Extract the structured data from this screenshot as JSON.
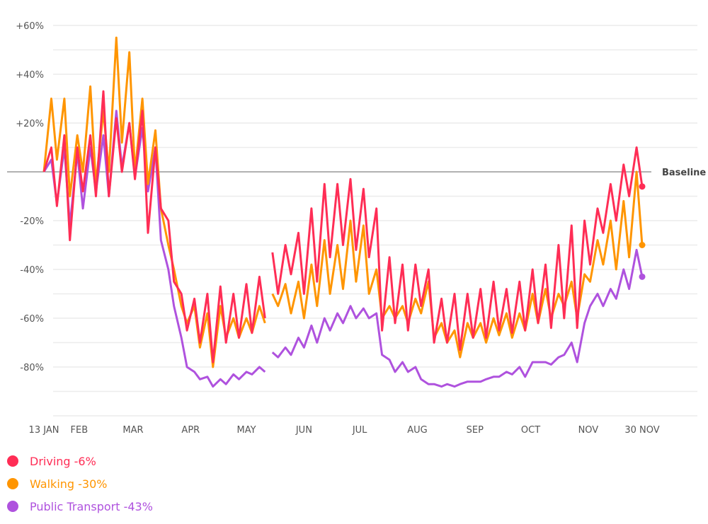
{
  "chart_data": {
    "type": "line",
    "title": "",
    "xlabel": "",
    "ylabel": "",
    "ylim": [
      -100,
      60
    ],
    "grid": true,
    "baseline": {
      "value": 0,
      "label": "Baseline"
    },
    "y_ticks": [
      {
        "value": 60,
        "label": "+60%"
      },
      {
        "value": 40,
        "label": "+40%"
      },
      {
        "value": 20,
        "label": "+20%"
      },
      {
        "value": -20,
        "label": "-20%"
      },
      {
        "value": -40,
        "label": "-40%"
      },
      {
        "value": -60,
        "label": "-60%"
      },
      {
        "value": -80,
        "label": "-80%"
      }
    ],
    "x_range": [
      "2020-01-13",
      "2020-11-30"
    ],
    "x_ticks": [
      {
        "date": "2020-01-13",
        "label": "13 JAN"
      },
      {
        "date": "2020-02-01",
        "label": "FEB"
      },
      {
        "date": "2020-03-01",
        "label": "MAR"
      },
      {
        "date": "2020-04-01",
        "label": "APR"
      },
      {
        "date": "2020-05-01",
        "label": "MAY"
      },
      {
        "date": "2020-06-01",
        "label": "JUN"
      },
      {
        "date": "2020-07-01",
        "label": "JUL"
      },
      {
        "date": "2020-08-01",
        "label": "AUG"
      },
      {
        "date": "2020-09-01",
        "label": "SEP"
      },
      {
        "date": "2020-10-01",
        "label": "OCT"
      },
      {
        "date": "2020-11-01",
        "label": "NOV"
      },
      {
        "date": "2020-11-30",
        "label": "30 NOV"
      }
    ],
    "x": [
      "2020-01-13",
      "2020-01-17",
      "2020-01-20",
      "2020-01-24",
      "2020-01-27",
      "2020-01-31",
      "2020-02-03",
      "2020-02-07",
      "2020-02-10",
      "2020-02-14",
      "2020-02-17",
      "2020-02-21",
      "2020-02-24",
      "2020-02-28",
      "2020-03-02",
      "2020-03-06",
      "2020-03-09",
      "2020-03-13",
      "2020-03-16",
      "2020-03-20",
      "2020-03-23",
      "2020-03-27",
      "2020-03-30",
      "2020-04-03",
      "2020-04-06",
      "2020-04-10",
      "2020-04-13",
      "2020-04-17",
      "2020-04-20",
      "2020-04-24",
      "2020-04-27",
      "2020-05-01",
      "2020-05-04",
      "2020-05-08",
      "2020-05-11",
      "2020-05-13",
      "2020-05-15",
      "2020-05-18",
      "2020-05-22",
      "2020-05-25",
      "2020-05-29",
      "2020-06-01",
      "2020-06-05",
      "2020-06-08",
      "2020-06-12",
      "2020-06-15",
      "2020-06-19",
      "2020-06-22",
      "2020-06-26",
      "2020-06-29",
      "2020-07-03",
      "2020-07-06",
      "2020-07-10",
      "2020-07-13",
      "2020-07-17",
      "2020-07-20",
      "2020-07-24",
      "2020-07-27",
      "2020-07-31",
      "2020-08-03",
      "2020-08-07",
      "2020-08-10",
      "2020-08-14",
      "2020-08-17",
      "2020-08-21",
      "2020-08-24",
      "2020-08-28",
      "2020-08-31",
      "2020-09-04",
      "2020-09-07",
      "2020-09-11",
      "2020-09-14",
      "2020-09-18",
      "2020-09-21",
      "2020-09-25",
      "2020-09-28",
      "2020-10-02",
      "2020-10-05",
      "2020-10-09",
      "2020-10-12",
      "2020-10-16",
      "2020-10-19",
      "2020-10-23",
      "2020-10-26",
      "2020-10-30",
      "2020-11-02",
      "2020-11-06",
      "2020-11-09",
      "2020-11-13",
      "2020-11-16",
      "2020-11-20",
      "2020-11-23",
      "2020-11-27",
      "2020-11-30"
    ],
    "series": [
      {
        "name": "Driving",
        "label": "Driving -6%",
        "color": "#ff2d55",
        "last": -6,
        "values": [
          0,
          10,
          -14,
          15,
          -28,
          10,
          -8,
          15,
          -10,
          33,
          -10,
          22,
          0,
          20,
          -3,
          25,
          -25,
          10,
          -15,
          -20,
          -45,
          -50,
          -65,
          -52,
          -70,
          -50,
          -78,
          -47,
          -70,
          -50,
          -68,
          -46,
          -66,
          -43,
          -60,
          null,
          -33,
          -50,
          -30,
          -42,
          -25,
          -50,
          -15,
          -45,
          -5,
          -35,
          -5,
          -30,
          -3,
          -32,
          -7,
          -35,
          -15,
          -65,
          -35,
          -62,
          -38,
          -65,
          -38,
          -55,
          -40,
          -70,
          -52,
          -70,
          -50,
          -73,
          -50,
          -68,
          -48,
          -68,
          -45,
          -65,
          -48,
          -66,
          -45,
          -65,
          -40,
          -62,
          -38,
          -64,
          -30,
          -60,
          -22,
          -64,
          -20,
          -38,
          -15,
          -25,
          -5,
          -20,
          3,
          -10,
          10,
          -6
        ]
      },
      {
        "name": "Walking",
        "label": "Walking -30%",
        "color": "#ff9500",
        "last": -30,
        "values": [
          0,
          30,
          5,
          30,
          -10,
          15,
          0,
          35,
          -5,
          25,
          0,
          55,
          12,
          49,
          0,
          30,
          -5,
          17,
          -15,
          -30,
          -40,
          -55,
          -62,
          -55,
          -72,
          -58,
          -80,
          -55,
          -68,
          -60,
          -68,
          -60,
          -66,
          -55,
          -62,
          null,
          -50,
          -55,
          -46,
          -58,
          -45,
          -60,
          -38,
          -55,
          -28,
          -50,
          -30,
          -48,
          -20,
          -45,
          -22,
          -50,
          -40,
          -60,
          -55,
          -60,
          -55,
          -62,
          -52,
          -58,
          -45,
          -68,
          -62,
          -70,
          -65,
          -76,
          -62,
          -68,
          -62,
          -70,
          -60,
          -67,
          -58,
          -68,
          -58,
          -65,
          -50,
          -62,
          -48,
          -60,
          -50,
          -55,
          -45,
          -60,
          -42,
          -45,
          -28,
          -38,
          -20,
          -40,
          -12,
          -35,
          0,
          -30
        ]
      },
      {
        "name": "Public Transport",
        "label": "Public Transport -43%",
        "color": "#af52de",
        "last": -43,
        "values": [
          0,
          5,
          -13,
          10,
          -22,
          8,
          -15,
          10,
          -8,
          15,
          -10,
          25,
          2,
          20,
          -2,
          18,
          -8,
          10,
          -28,
          -40,
          -55,
          -68,
          -80,
          -82,
          -85,
          -84,
          -88,
          -85,
          -87,
          -83,
          -85,
          -82,
          -83,
          -80,
          -82,
          null,
          -74,
          -76,
          -72,
          -75,
          -68,
          -72,
          -63,
          -70,
          -60,
          -65,
          -58,
          -62,
          -55,
          -60,
          -56,
          -60,
          -58,
          -75,
          -77,
          -82,
          -78,
          -82,
          -80,
          -85,
          -87,
          -87,
          -88,
          -87,
          -88,
          -87,
          -86,
          -86,
          -86,
          -85,
          -84,
          -84,
          -82,
          -83,
          -80,
          -84,
          -78,
          -78,
          -78,
          -79,
          -76,
          -75,
          -70,
          -78,
          -62,
          -55,
          -50,
          -55,
          -48,
          -52,
          -40,
          -48,
          -32,
          -43
        ]
      }
    ]
  }
}
